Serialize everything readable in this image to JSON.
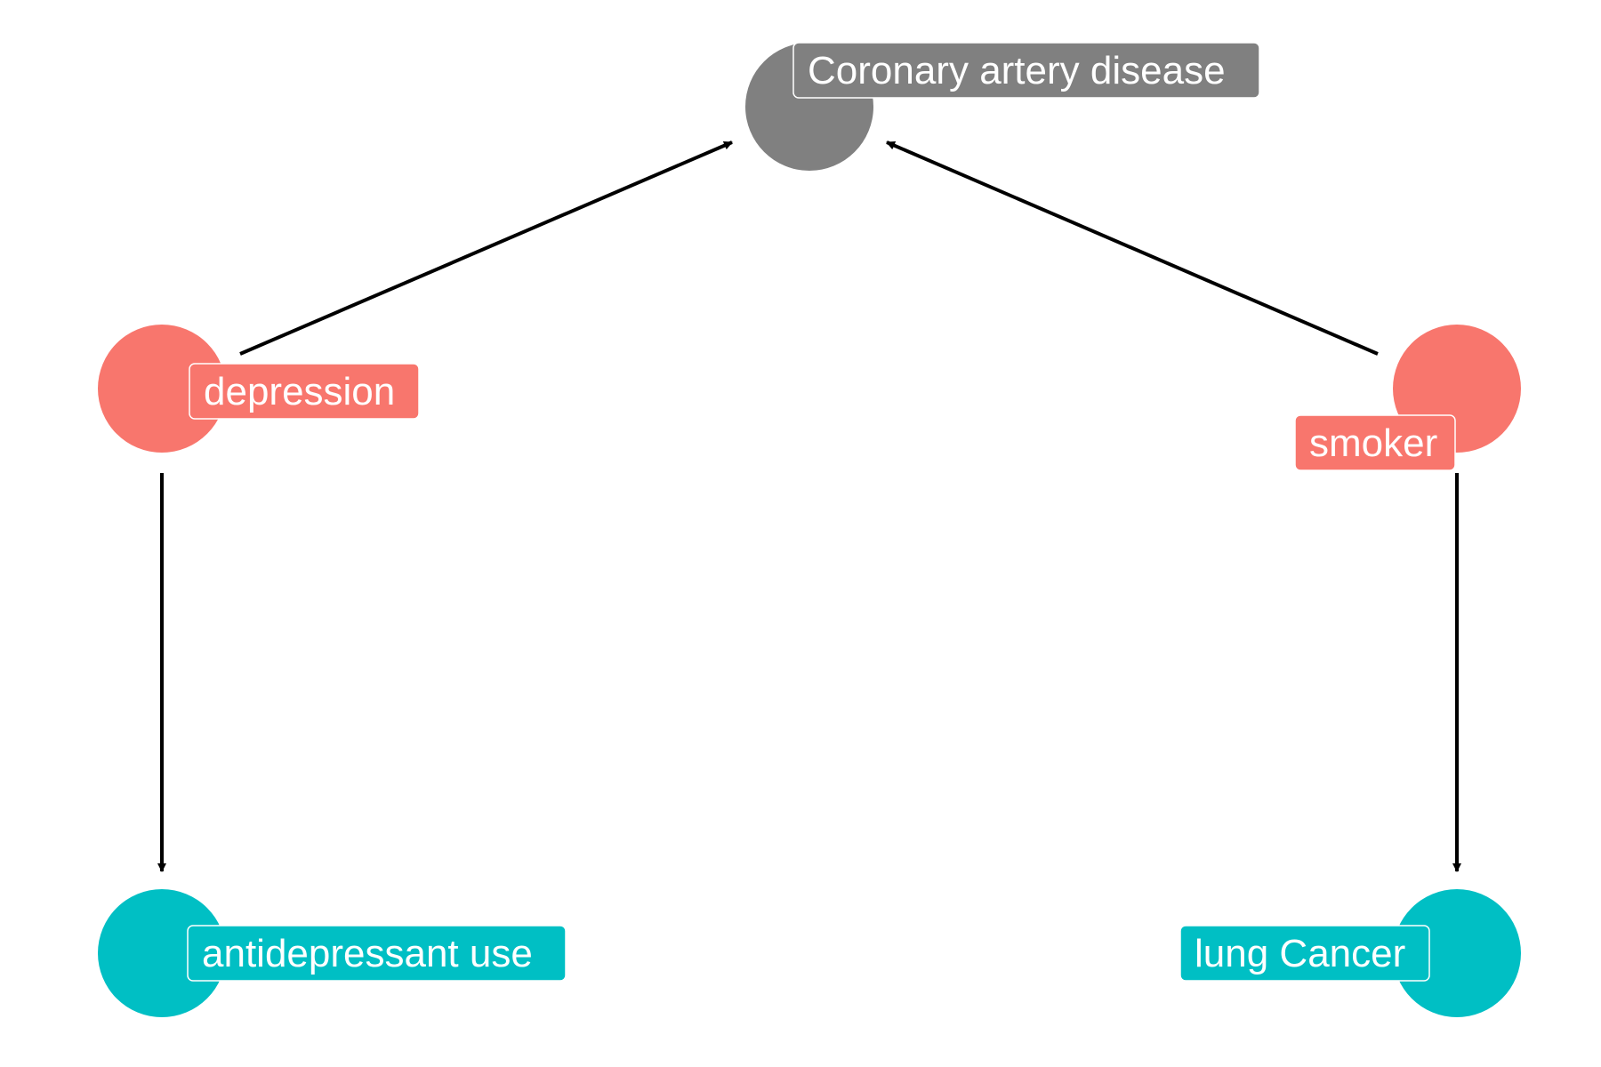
{
  "colors": {
    "background": "#ffffff",
    "edge": "#000000",
    "label_border": "#ffffff",
    "label_text": "#ffffff"
  },
  "nodes": [
    {
      "id": "cad",
      "label": "Coronary artery disease",
      "color": "#808080"
    },
    {
      "id": "depression",
      "label": "depression",
      "color": "#F8766D"
    },
    {
      "id": "smoker",
      "label": "smoker",
      "color": "#F8766D"
    },
    {
      "id": "antidepressant",
      "label": "antidepressant use",
      "color": "#00BFC4"
    },
    {
      "id": "lung",
      "label": "lung Cancer",
      "color": "#00BFC4"
    }
  ],
  "edges": [
    {
      "from": "depression",
      "to": "cad"
    },
    {
      "from": "smoker",
      "to": "cad"
    },
    {
      "from": "depression",
      "to": "antidepressant"
    },
    {
      "from": "smoker",
      "to": "lung"
    }
  ]
}
